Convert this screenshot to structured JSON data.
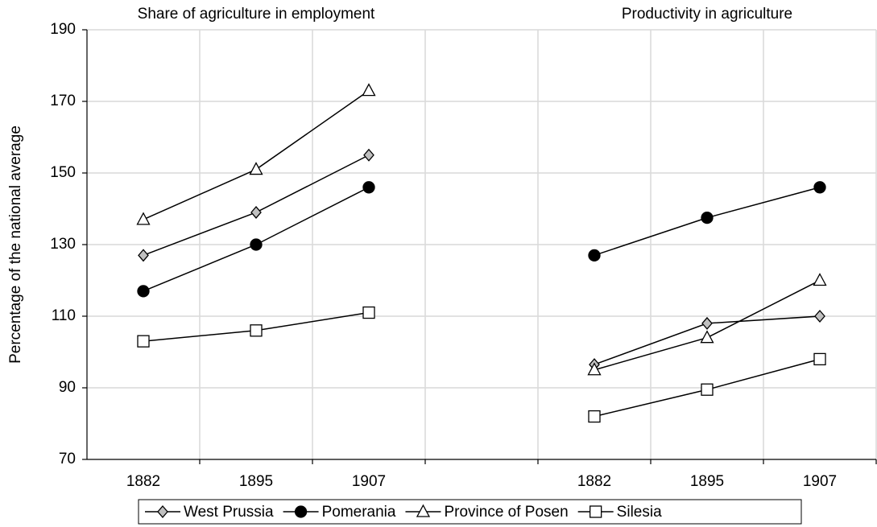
{
  "chart_data": {
    "type": "line",
    "annotations": [
      "Share of agriculture in employment",
      "Productivity in agriculture"
    ],
    "y_label": "Percentage of the national average",
    "categories": [
      "1882",
      "1895",
      "1907",
      null,
      "1882",
      "1895",
      "1907"
    ],
    "series": [
      {
        "name": "West Prussia",
        "color": "#000000",
        "marker": "diamond",
        "values": [
          127,
          139,
          155,
          null,
          96.5,
          108,
          110
        ]
      },
      {
        "name": "Pomerania",
        "color": "#000000",
        "marker": "circle",
        "values": [
          117,
          130,
          146,
          null,
          127,
          137.5,
          146
        ]
      },
      {
        "name": "Province of Posen",
        "color": "#000000",
        "marker": "triangle",
        "values": [
          137,
          151,
          173,
          null,
          95,
          104,
          120
        ]
      },
      {
        "name": "Silesia",
        "color": "#000000",
        "marker": "square",
        "values": [
          103,
          106,
          111,
          null,
          82,
          89.5,
          98
        ]
      }
    ],
    "ylim": [
      70,
      190
    ],
    "yticks": [
      70,
      90,
      110,
      130,
      150,
      170,
      190
    ],
    "grid": true,
    "legend": "bottom"
  }
}
